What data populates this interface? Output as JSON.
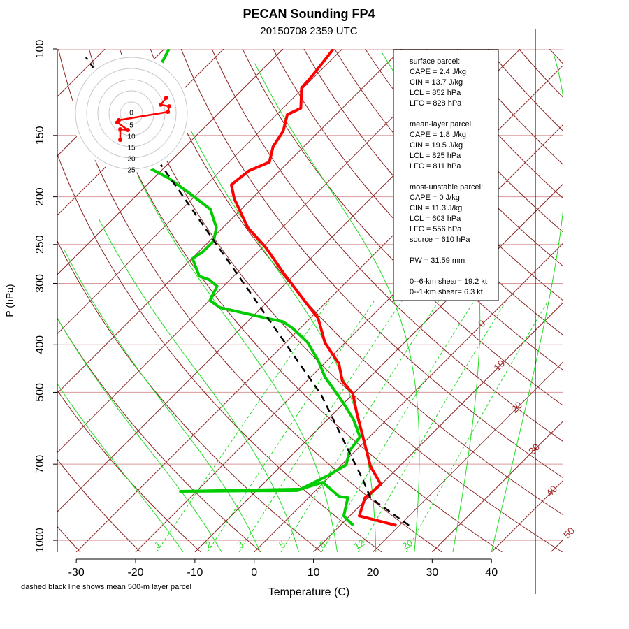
{
  "chart_data": {
    "type": "skewt",
    "title": "PECAN Sounding FP4",
    "subtitle": "20150708 2359 UTC",
    "x_label": "Temperature (C)",
    "y_label": "P (hPa)",
    "note": "dashed black line shows mean 500-m layer parcel",
    "xlim": [
      -33.2,
      47.4
    ],
    "xticks": [
      -30,
      -20,
      -10,
      0,
      10,
      20,
      30,
      40
    ],
    "ylim": [
      1057,
      100
    ],
    "yticks": [
      100,
      150,
      200,
      250,
      300,
      400,
      500,
      700,
      1000
    ],
    "log_scale_y": true,
    "grid": true,
    "series": [
      {
        "color": "#ff0000",
        "pressure": [
          933,
          892,
          819,
          769,
          708,
          620,
          549,
          503,
          474,
          437,
          396,
          353,
          325,
          285,
          254,
          231,
          202,
          189,
          177,
          170,
          158,
          147,
          136,
          132,
          120,
          114,
          105,
          100
        ],
        "values": [
          19.5,
          11.6,
          9.5,
          9.9,
          5.2,
          -0.8,
          -6.3,
          -10.1,
          -14.0,
          -17.5,
          -23.4,
          -28.7,
          -34.0,
          -42.3,
          -49.3,
          -55.8,
          -62.9,
          -65.8,
          -65.2,
          -63.2,
          -65.2,
          -66.1,
          -68.2,
          -67.0,
          -70.3,
          -70.5,
          -71.1,
          -71.5
        ]
      },
      {
        "color": "#00cc00",
        "pressure": [
          933,
          892,
          819,
          814,
          762,
          787,
          795,
          792,
          737,
          702,
          658,
          616,
          567,
          523,
          498,
          466,
          430,
          396,
          371,
          359,
          353,
          336,
          325,
          304,
          295,
          290,
          267,
          259,
          246,
          231,
          212,
          196,
          183,
          172,
          106,
          100
        ],
        "values": [
          12.2,
          9.0,
          6.6,
          4.9,
          -0.2,
          -2.8,
          -22.7,
          -3.1,
          -0.4,
          0.8,
          -1.0,
          -1.6,
          -5.7,
          -10.4,
          -13.4,
          -17.5,
          -21.6,
          -26.3,
          -31.1,
          -34.0,
          -37.5,
          -47.0,
          -49.9,
          -51.1,
          -53.5,
          -55.8,
          -59.9,
          -59.3,
          -59.3,
          -61.1,
          -65.2,
          -71.7,
          -77.6,
          -84.1,
          -98.2,
          -99.2
        ]
      },
      {
        "color": "#000000",
        "dashed": true,
        "pressure": [
          933,
          819,
          757,
          506,
          295,
          104
        ],
        "values": [
          21.6,
          10.4,
          6.4,
          -15.2,
          -48.1,
          -111.8
        ]
      }
    ],
    "isotherm_labels": [
      0,
      10,
      20,
      30,
      40,
      50
    ],
    "mixing_ratio_labels": [
      1,
      2,
      3,
      5,
      8,
      12,
      20
    ],
    "hodograph": {
      "rings": [
        0,
        5,
        10,
        15,
        20,
        25
      ],
      "u": [
        -5.0,
        -5.0,
        -1.6,
        -6.3,
        -5.6,
        16.3,
        16.9,
        13.1,
        15.6
      ],
      "v": [
        -11.9,
        -7.2,
        -7.5,
        -4.1,
        -3.1,
        0.6,
        3.1,
        3.8,
        6.9
      ]
    },
    "info_box": [
      [
        "surface parcel:",
        "CAPE = 2.4 J/kg",
        "CIN = 13.7 J/kg",
        "LCL = 852 hPa",
        "LFC = 828 hPa"
      ],
      [
        "mean-layer parcel:",
        "CAPE = 1.8 J/kg",
        "CIN = 19.5 J/kg",
        "LCL = 825 hPa",
        "LFC = 811 hPa"
      ],
      [
        "most-unstable parcel:",
        "CAPE = 0 J/kg",
        "CIN = 11.3 J/kg",
        "LCL = 603 hPa",
        "LFC = 556 hPa",
        "source = 610 hPa"
      ],
      [
        "PW =  31.59 mm"
      ],
      [
        "0--6-km shear= 19.2 kt",
        "0--1-km shear= 6.3 kt"
      ]
    ]
  }
}
